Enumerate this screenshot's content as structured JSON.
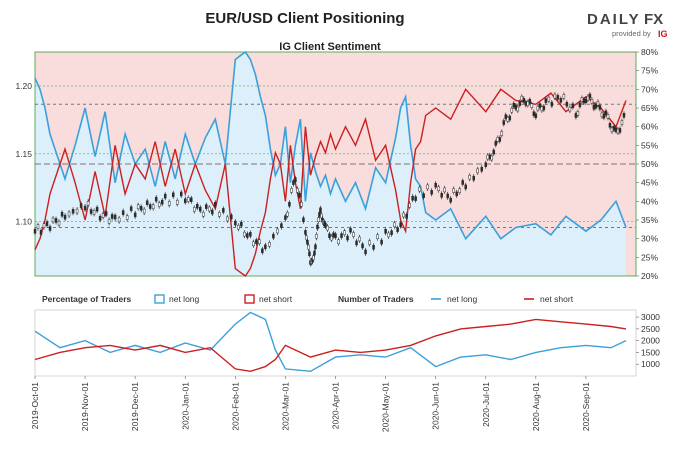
{
  "header": {
    "title": "EUR/USD Client Positioning",
    "logo_daily": "DAILY",
    "logo_fx": "FX",
    "logo_provided": "provided by",
    "logo_ig": "IG"
  },
  "chart_data": [
    {
      "type": "line",
      "title": "IG Client Sentiment",
      "x_tick_labels": [
        "2019-Oct-01",
        "2019-Nov-01",
        "2019-Dec-01",
        "2020-Jan-01",
        "2020-Feb-01",
        "2020-Mar-01",
        "2020-Apr-01",
        "2020-May-01",
        "2020-Jun-01",
        "2020-Jul-01",
        "2020-Aug-01",
        "2020-Sep-01"
      ],
      "left_axis": {
        "ticks": [
          "1.10",
          "1.15",
          "1.20"
        ],
        "ylim": [
          1.06,
          1.225
        ]
      },
      "right_axis": {
        "ticks": [
          "20%",
          "25%",
          "30%",
          "35%",
          "40%",
          "45%",
          "50%",
          "55%",
          "60%",
          "65%",
          "70%",
          "75%",
          "80%"
        ],
        "ylim": [
          20,
          80
        ]
      },
      "reference_lines_percent": [
        33,
        50,
        66
      ],
      "colors": {
        "net_long": "#3aa0dc",
        "net_short": "#cc1f1f",
        "long_fill": "#dceffa",
        "short_fill": "#f9dcdc",
        "candle": "#2b2b2b"
      },
      "series": [
        {
          "name": "net long",
          "axis": "right",
          "unit": "%",
          "x_month_index": [
            0,
            0.1,
            0.2,
            0.3,
            0.4,
            0.5,
            0.6,
            0.8,
            1.0,
            1.2,
            1.4,
            1.6,
            1.8,
            2.0,
            2.2,
            2.4,
            2.6,
            2.8,
            3.0,
            3.2,
            3.4,
            3.6,
            3.8,
            4.0,
            4.1,
            4.2,
            4.3,
            4.4,
            4.5,
            4.6,
            4.7,
            4.8,
            4.9,
            5.0,
            5.1,
            5.2,
            5.3,
            5.4,
            5.5,
            5.6,
            5.7,
            5.8,
            5.9,
            6.0,
            6.2,
            6.4,
            6.6,
            6.8,
            7.0,
            7.2,
            7.3,
            7.4,
            7.5,
            7.6,
            7.7,
            7.8,
            8.0,
            8.3,
            8.6,
            9.0,
            9.3,
            9.6,
            10.0,
            10.3,
            10.6,
            11.0,
            11.3,
            11.6,
            11.8
          ],
          "values": [
            73,
            70,
            65,
            58,
            54,
            50,
            46,
            55,
            65,
            52,
            64,
            45,
            58,
            50,
            54,
            44,
            56,
            46,
            58,
            50,
            57,
            62,
            50,
            78,
            79,
            80,
            78,
            74,
            68,
            63,
            54,
            47,
            50,
            60,
            45,
            55,
            62,
            40,
            53,
            48,
            44,
            47,
            42,
            46,
            40,
            45,
            38,
            49,
            45,
            57,
            65,
            68,
            55,
            46,
            44,
            37,
            35,
            38,
            30,
            36,
            30,
            33,
            34,
            31,
            36,
            32,
            35,
            40,
            33
          ]
        },
        {
          "name": "net short",
          "axis": "right",
          "unit": "%",
          "x_month_index": [
            0,
            0.1,
            0.2,
            0.3,
            0.4,
            0.5,
            0.6,
            0.8,
            1.0,
            1.2,
            1.4,
            1.6,
            1.8,
            2.0,
            2.2,
            2.4,
            2.6,
            2.8,
            3.0,
            3.2,
            3.4,
            3.6,
            3.8,
            4.0,
            4.1,
            4.2,
            4.3,
            4.4,
            4.5,
            4.6,
            4.7,
            4.8,
            4.9,
            5.0,
            5.1,
            5.2,
            5.3,
            5.4,
            5.5,
            5.6,
            5.7,
            5.8,
            5.9,
            6.0,
            6.2,
            6.4,
            6.6,
            6.8,
            7.0,
            7.2,
            7.3,
            7.4,
            7.5,
            7.6,
            7.7,
            7.8,
            8.0,
            8.3,
            8.6,
            9.0,
            9.3,
            9.6,
            10.0,
            10.3,
            10.6,
            11.0,
            11.3,
            11.6,
            11.8
          ],
          "values": [
            27,
            30,
            35,
            42,
            46,
            50,
            54,
            45,
            35,
            48,
            36,
            55,
            42,
            50,
            46,
            56,
            44,
            54,
            42,
            50,
            43,
            38,
            50,
            22,
            21,
            20,
            22,
            26,
            32,
            37,
            46,
            53,
            50,
            40,
            55,
            45,
            38,
            60,
            47,
            52,
            56,
            53,
            58,
            54,
            60,
            55,
            62,
            51,
            55,
            43,
            35,
            32,
            45,
            54,
            56,
            63,
            65,
            62,
            70,
            64,
            70,
            67,
            66,
            69,
            64,
            68,
            65,
            60,
            67
          ]
        },
        {
          "name": "EUR/USD",
          "axis": "left",
          "type": "candlestick_close",
          "x_month_index": [
            0,
            0.3,
            0.6,
            1.0,
            1.3,
            1.6,
            2.0,
            2.3,
            2.6,
            3.0,
            3.3,
            3.6,
            4.0,
            4.3,
            4.6,
            5.0,
            5.2,
            5.4,
            5.5,
            5.6,
            5.7,
            5.8,
            6.0,
            6.3,
            6.6,
            7.0,
            7.3,
            7.6,
            8.0,
            8.3,
            8.6,
            9.0,
            9.2,
            9.4,
            9.6,
            9.8,
            10.0,
            10.2,
            10.5,
            10.8,
            11.0,
            11.2,
            11.4,
            11.6,
            11.8
          ],
          "values": [
            1.093,
            1.098,
            1.104,
            1.112,
            1.105,
            1.102,
            1.108,
            1.112,
            1.116,
            1.118,
            1.108,
            1.11,
            1.1,
            1.088,
            1.08,
            1.102,
            1.133,
            1.095,
            1.068,
            1.082,
            1.11,
            1.095,
            1.087,
            1.092,
            1.08,
            1.09,
            1.098,
            1.12,
            1.125,
            1.118,
            1.128,
            1.142,
            1.155,
            1.175,
            1.185,
            1.19,
            1.18,
            1.188,
            1.192,
            1.18,
            1.192,
            1.186,
            1.178,
            1.165,
            1.178
          ]
        }
      ]
    },
    {
      "type": "line",
      "title": "",
      "legend_left": {
        "title": "Percentage of Traders",
        "items": [
          "net long",
          "net short"
        ]
      },
      "legend_right": {
        "title": "Number of Traders",
        "items": [
          "net long",
          "net short"
        ]
      },
      "y_axis_right": {
        "ticks": [
          "1000",
          "1500",
          "2000",
          "2500",
          "3000"
        ],
        "ylim": [
          500,
          3300
        ]
      },
      "series": [
        {
          "name": "net long",
          "axis": "right",
          "x_month_index": [
            0,
            0.5,
            1.0,
            1.5,
            2.0,
            2.5,
            3.0,
            3.5,
            4.0,
            4.3,
            4.6,
            4.8,
            5.0,
            5.5,
            6.0,
            6.5,
            7.0,
            7.5,
            8.0,
            8.5,
            9.0,
            9.5,
            10.0,
            10.5,
            11.0,
            11.5,
            11.8
          ],
          "values": [
            2400,
            1700,
            2000,
            1500,
            1800,
            1500,
            1900,
            1600,
            2700,
            3200,
            2900,
            1600,
            800,
            700,
            1300,
            1400,
            1300,
            1700,
            900,
            1300,
            1400,
            1200,
            1500,
            1700,
            1800,
            1700,
            2000
          ]
        },
        {
          "name": "net short",
          "axis": "right",
          "x_month_index": [
            0,
            0.5,
            1.0,
            1.5,
            2.0,
            2.5,
            3.0,
            3.5,
            4.0,
            4.3,
            4.6,
            4.8,
            5.0,
            5.5,
            6.0,
            6.5,
            7.0,
            7.5,
            8.0,
            8.5,
            9.0,
            9.5,
            10.0,
            10.5,
            11.0,
            11.5,
            11.8
          ],
          "values": [
            1200,
            1500,
            1700,
            1800,
            1600,
            1800,
            1500,
            1700,
            800,
            700,
            900,
            1200,
            1800,
            1300,
            1600,
            1500,
            1600,
            1800,
            2200,
            2500,
            2600,
            2700,
            2900,
            2800,
            2700,
            2600,
            2500
          ]
        }
      ]
    }
  ]
}
